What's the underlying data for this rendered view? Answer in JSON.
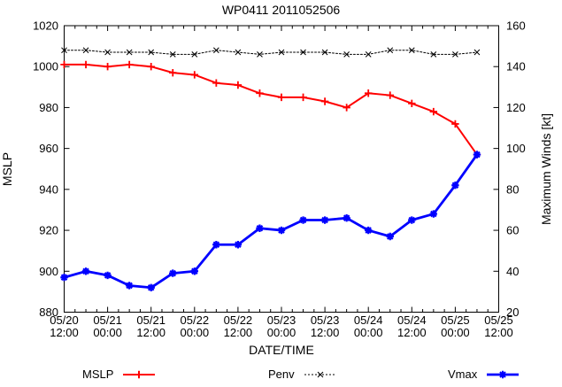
{
  "header": {
    "title": "WP0411 2011052506"
  },
  "chart_data": {
    "type": "line",
    "title": "WP0411 2011052506",
    "x_axis": {
      "label": "DATE/TIME",
      "range_hours": [
        0,
        120
      ],
      "major_tick_hours": 12,
      "minor_tick_hours": 3,
      "tick_labels": [
        "05/20 12:00",
        "05/21 00:00",
        "05/21 12:00",
        "05/22 00:00",
        "05/22 12:00",
        "05/23 00:00",
        "05/23 12:00",
        "05/24 00:00",
        "05/24 12:00",
        "05/25 00:00",
        "05/25 12:00"
      ]
    },
    "left_axis": {
      "label": "MSLP",
      "min": 880,
      "max": 1020,
      "ticks": [
        880,
        900,
        920,
        940,
        960,
        980,
        1000,
        1020
      ]
    },
    "right_axis": {
      "label": "Maximum Winds [kt]",
      "min": 20,
      "max": 160,
      "ticks": [
        20,
        40,
        60,
        80,
        100,
        120,
        140,
        160
      ]
    },
    "hours": [
      0,
      6,
      12,
      18,
      24,
      30,
      36,
      42,
      48,
      54,
      60,
      66,
      72,
      78,
      84,
      90,
      96,
      102,
      108,
      114
    ],
    "series": [
      {
        "name": "MSLP",
        "axis": "left",
        "color": "#ff0000",
        "line": "solid",
        "width": 2,
        "marker": "plus",
        "values": [
          1001,
          1001,
          1000,
          1001,
          1000,
          997,
          996,
          992,
          991,
          987,
          985,
          985,
          983,
          980,
          987,
          986,
          982,
          978,
          972,
          957
        ]
      },
      {
        "name": "Penv",
        "axis": "left",
        "color": "#000000",
        "line": "dashed",
        "width": 1,
        "marker": "cross",
        "values": [
          1008,
          1008,
          1007,
          1007,
          1007,
          1006,
          1006,
          1008,
          1007,
          1006,
          1007,
          1007,
          1007,
          1006,
          1006,
          1008,
          1008,
          1006,
          1006,
          1007
        ]
      },
      {
        "name": "Vmax",
        "axis": "right",
        "color": "#0000ff",
        "line": "solid",
        "width": 2.8,
        "marker": "star",
        "values": [
          37,
          40,
          38,
          33,
          32,
          39,
          40,
          53,
          53,
          61,
          60,
          65,
          65,
          66,
          60,
          57,
          65,
          68,
          82,
          97
        ]
      }
    ],
    "legend_position": "bottom",
    "grid": false
  }
}
